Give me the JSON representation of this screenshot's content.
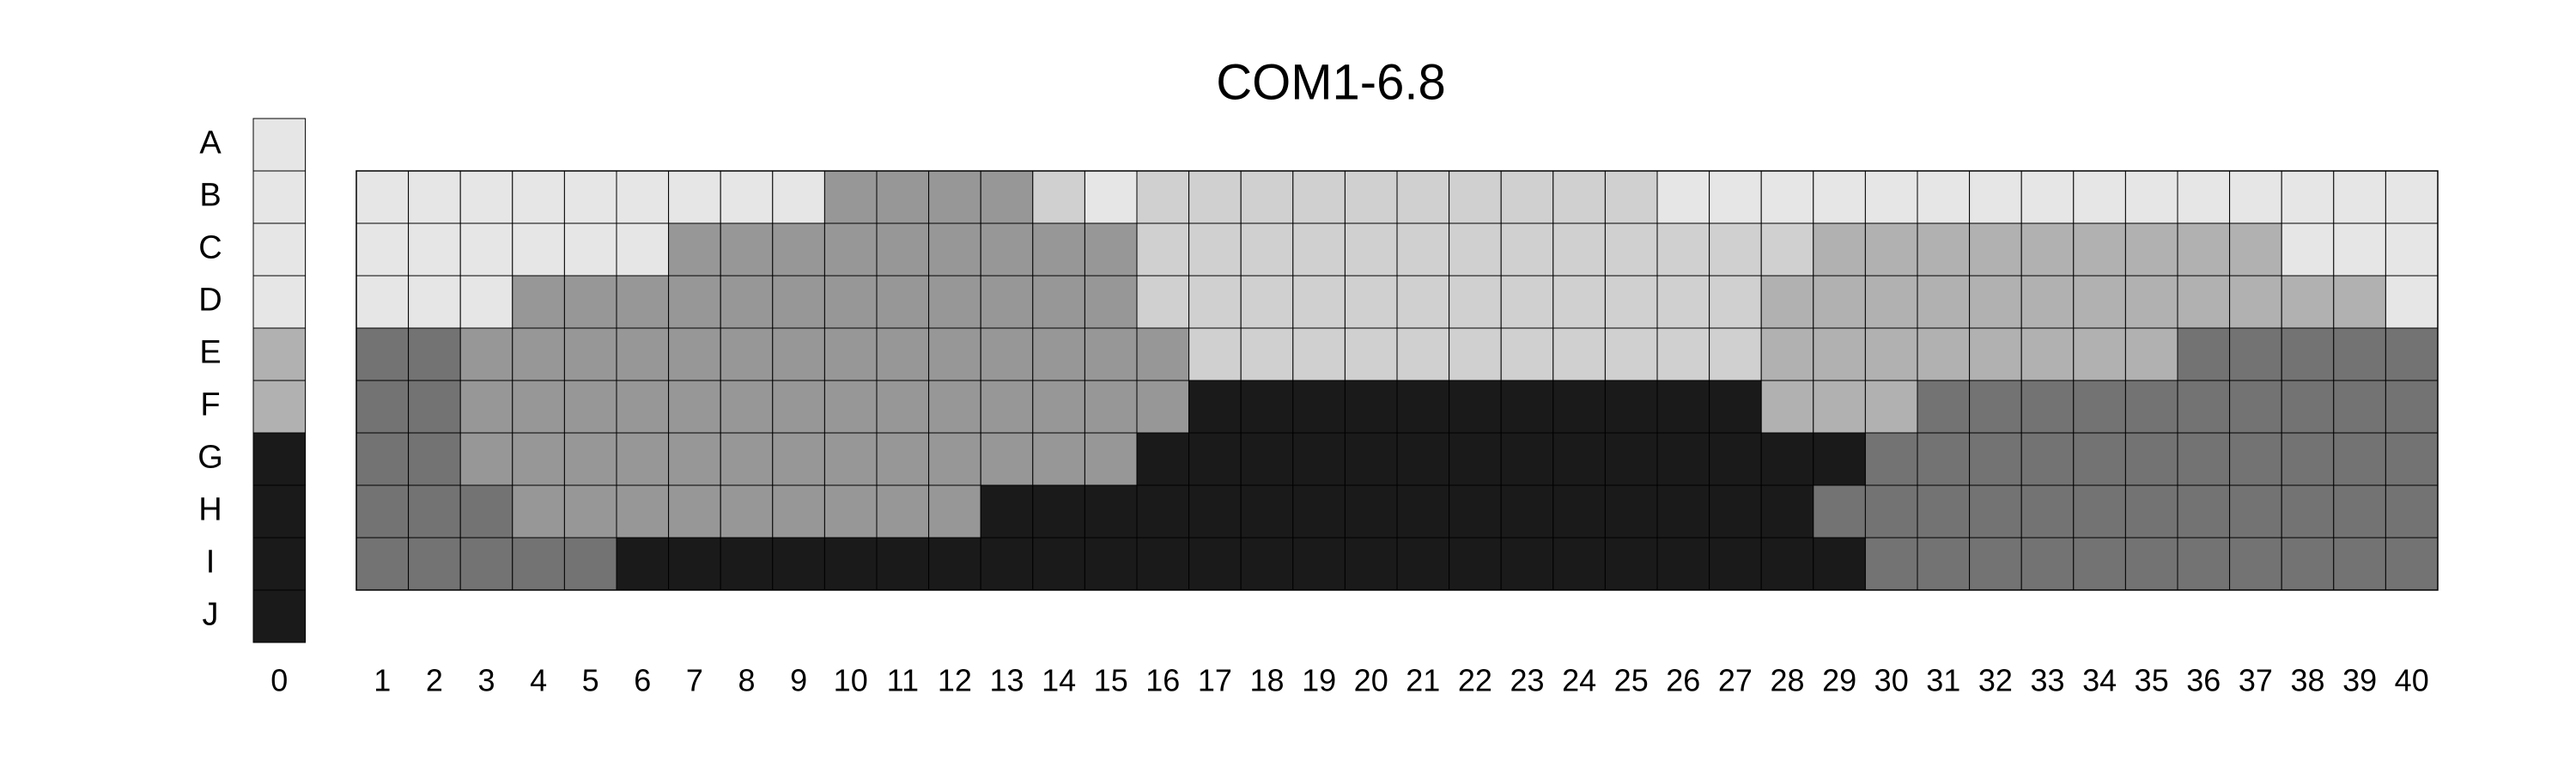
{
  "chart_data": {
    "type": "heatmap",
    "title": "COM1-6.8",
    "rows": [
      "A",
      "B",
      "C",
      "D",
      "E",
      "F",
      "G",
      "H",
      "I",
      "J"
    ],
    "columns": [
      "0",
      "1",
      "2",
      "3",
      "4",
      "5",
      "6",
      "7",
      "8",
      "9",
      "10",
      "11",
      "12",
      "13",
      "14",
      "15",
      "16",
      "17",
      "18",
      "19",
      "20",
      "21",
      "22",
      "23",
      "24",
      "25",
      "26",
      "27",
      "28",
      "29",
      "30",
      "31",
      "32",
      "33",
      "34",
      "35",
      "36",
      "37",
      "38",
      "39",
      "40"
    ],
    "legend_column": {
      "column": "0",
      "rows": [
        "A",
        "B",
        "C",
        "D",
        "E",
        "F",
        "G",
        "H",
        "I",
        "J"
      ],
      "levels": [
        0,
        0,
        0,
        0,
        3,
        3,
        5,
        5,
        5,
        5
      ]
    },
    "grid": {
      "rows": [
        "B",
        "C",
        "D",
        "E",
        "F",
        "G",
        "H",
        "I"
      ],
      "columns": [
        "1",
        "2",
        "3",
        "4",
        "5",
        "6",
        "7",
        "8",
        "9",
        "10",
        "11",
        "12",
        "13",
        "14",
        "15",
        "16",
        "17",
        "18",
        "19",
        "20",
        "21",
        "22",
        "23",
        "24",
        "25",
        "26",
        "27",
        "28",
        "29",
        "30",
        "31",
        "32",
        "33",
        "34",
        "35",
        "36",
        "37",
        "38",
        "39",
        "40"
      ],
      "levels": [
        [
          0,
          0,
          0,
          0,
          0,
          0,
          0,
          0,
          0,
          2,
          2,
          2,
          2,
          1,
          0,
          1,
          1,
          1,
          1,
          1,
          1,
          1,
          1,
          1,
          1,
          0,
          0,
          0,
          0,
          0,
          0,
          0,
          0,
          0,
          0,
          0,
          0,
          0,
          0,
          0
        ],
        [
          0,
          0,
          0,
          0,
          0,
          0,
          2,
          2,
          2,
          2,
          2,
          2,
          2,
          2,
          2,
          1,
          1,
          1,
          1,
          1,
          1,
          1,
          1,
          1,
          1,
          1,
          1,
          1,
          3,
          3,
          3,
          3,
          3,
          3,
          3,
          3,
          3,
          0,
          0,
          0
        ],
        [
          0,
          0,
          0,
          2,
          2,
          2,
          2,
          2,
          2,
          2,
          2,
          2,
          2,
          2,
          2,
          1,
          1,
          1,
          1,
          1,
          1,
          1,
          1,
          1,
          1,
          1,
          1,
          3,
          3,
          3,
          3,
          3,
          3,
          3,
          3,
          3,
          3,
          3,
          3,
          0
        ],
        [
          4,
          4,
          2,
          2,
          2,
          2,
          2,
          2,
          2,
          2,
          2,
          2,
          2,
          2,
          2,
          2,
          1,
          1,
          1,
          1,
          1,
          1,
          1,
          1,
          1,
          1,
          1,
          3,
          3,
          3,
          3,
          3,
          3,
          3,
          3,
          4,
          4,
          4,
          4,
          4
        ],
        [
          4,
          4,
          2,
          2,
          2,
          2,
          2,
          2,
          2,
          2,
          2,
          2,
          2,
          2,
          2,
          2,
          5,
          5,
          5,
          5,
          5,
          5,
          5,
          5,
          5,
          5,
          5,
          3,
          3,
          3,
          4,
          4,
          4,
          4,
          4,
          4,
          4,
          4,
          4,
          4
        ],
        [
          4,
          4,
          2,
          2,
          2,
          2,
          2,
          2,
          2,
          2,
          2,
          2,
          2,
          2,
          2,
          5,
          5,
          5,
          5,
          5,
          5,
          5,
          5,
          5,
          5,
          5,
          5,
          5,
          5,
          4,
          4,
          4,
          4,
          4,
          4,
          4,
          4,
          4,
          4,
          4
        ],
        [
          4,
          4,
          4,
          2,
          2,
          2,
          2,
          2,
          2,
          2,
          2,
          2,
          5,
          5,
          5,
          5,
          5,
          5,
          5,
          5,
          5,
          5,
          5,
          5,
          5,
          5,
          5,
          5,
          4,
          4,
          4,
          4,
          4,
          4,
          4,
          4,
          4,
          4,
          4,
          4
        ],
        [
          4,
          4,
          4,
          4,
          4,
          5,
          5,
          5,
          5,
          5,
          5,
          5,
          5,
          5,
          5,
          5,
          5,
          5,
          5,
          5,
          5,
          5,
          5,
          5,
          5,
          5,
          5,
          5,
          5,
          4,
          4,
          4,
          4,
          4,
          4,
          4,
          4,
          4,
          4,
          4
        ]
      ]
    },
    "palette": [
      "#e6e6e6",
      "#d0d0d0",
      "#979797",
      "#b1b1b1",
      "#737373",
      "#1a1a1a"
    ],
    "cell_border_color": "#000000",
    "xlabel": "",
    "ylabel": "",
    "legend": "none"
  }
}
